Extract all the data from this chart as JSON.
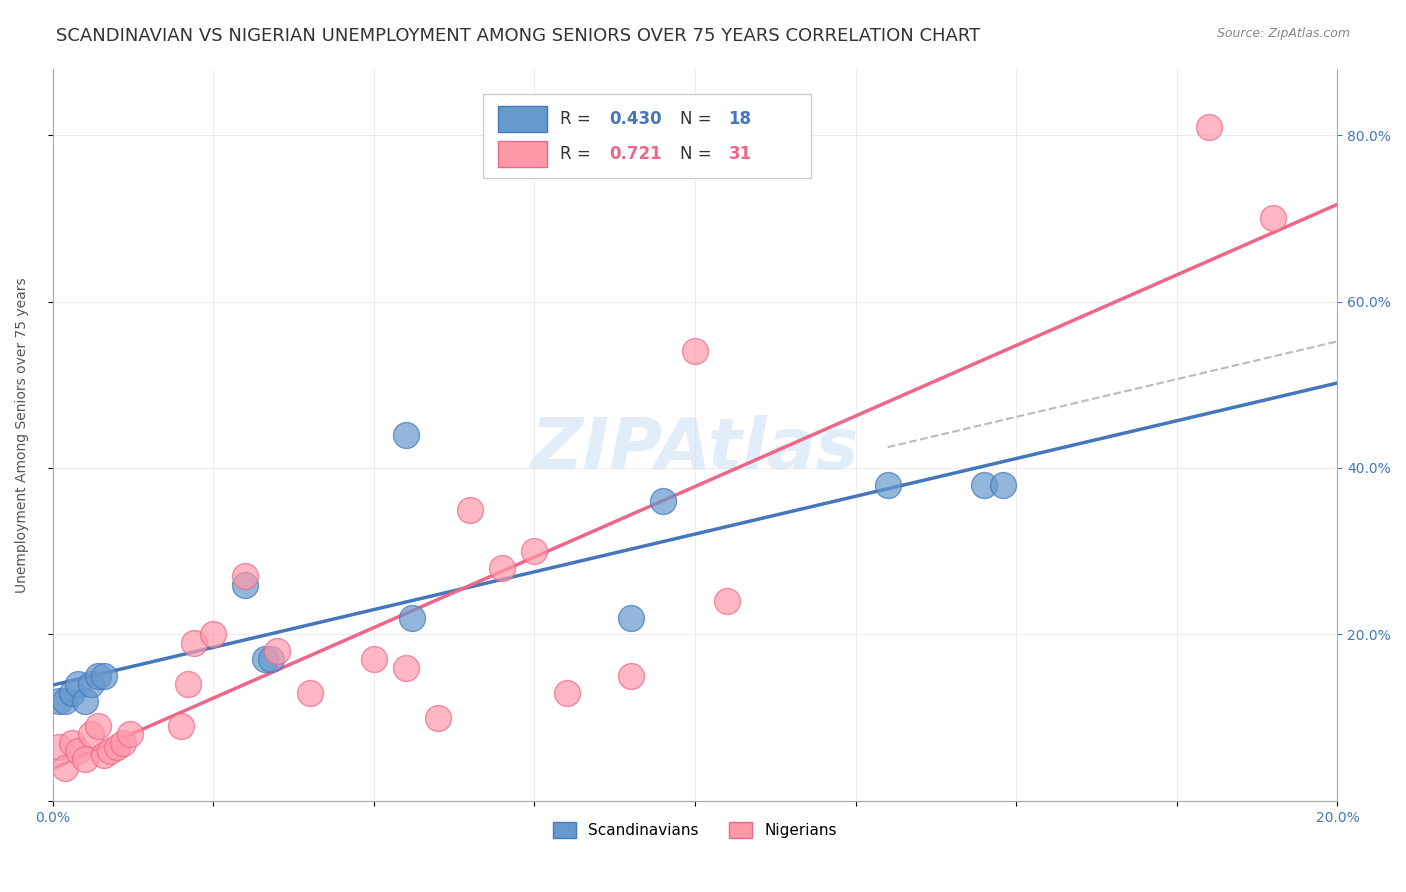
{
  "title": "SCANDINAVIAN VS NIGERIAN UNEMPLOYMENT AMONG SENIORS OVER 75 YEARS CORRELATION CHART",
  "source": "Source: ZipAtlas.com",
  "ylabel": "Unemployment Among Seniors over 75 years",
  "right_yticks": [
    0.2,
    0.4,
    0.6,
    0.8
  ],
  "right_yticklabels": [
    "20.0%",
    "40.0%",
    "60.0%",
    "80.0%"
  ],
  "xlim": [
    0.0,
    0.2
  ],
  "ylim": [
    0.0,
    0.88
  ],
  "scandinavian_x": [
    0.001,
    0.002,
    0.003,
    0.004,
    0.005,
    0.006,
    0.007,
    0.008,
    0.03,
    0.033,
    0.034,
    0.055,
    0.056,
    0.09,
    0.095,
    0.13,
    0.145,
    0.148
  ],
  "scandinavian_y": [
    0.12,
    0.12,
    0.13,
    0.14,
    0.12,
    0.14,
    0.15,
    0.15,
    0.26,
    0.17,
    0.17,
    0.44,
    0.22,
    0.22,
    0.36,
    0.38,
    0.38,
    0.38
  ],
  "nigerian_x": [
    0.001,
    0.002,
    0.003,
    0.004,
    0.005,
    0.006,
    0.007,
    0.008,
    0.009,
    0.01,
    0.011,
    0.012,
    0.02,
    0.021,
    0.022,
    0.025,
    0.03,
    0.035,
    0.04,
    0.05,
    0.055,
    0.06,
    0.065,
    0.07,
    0.075,
    0.08,
    0.09,
    0.1,
    0.105,
    0.18,
    0.19
  ],
  "nigerian_y": [
    0.065,
    0.04,
    0.07,
    0.06,
    0.05,
    0.08,
    0.09,
    0.055,
    0.06,
    0.065,
    0.07,
    0.08,
    0.09,
    0.14,
    0.19,
    0.2,
    0.27,
    0.18,
    0.13,
    0.17,
    0.16,
    0.1,
    0.35,
    0.28,
    0.3,
    0.13,
    0.15,
    0.54,
    0.24,
    0.81,
    0.7
  ],
  "blue_color": "#6699CC",
  "pink_color": "#FF99AA",
  "blue_line_color": "#4477BB",
  "pink_line_color": "#EE6688",
  "dashed_line_color": "#BBBBBB",
  "watermark_color": "#AACCEE",
  "title_fontsize": 13,
  "axis_label_fontsize": 10,
  "tick_fontsize": 10,
  "legend_r_blue": "0.430",
  "legend_n_blue": "18",
  "legend_r_pink": "0.721",
  "legend_n_pink": "31"
}
